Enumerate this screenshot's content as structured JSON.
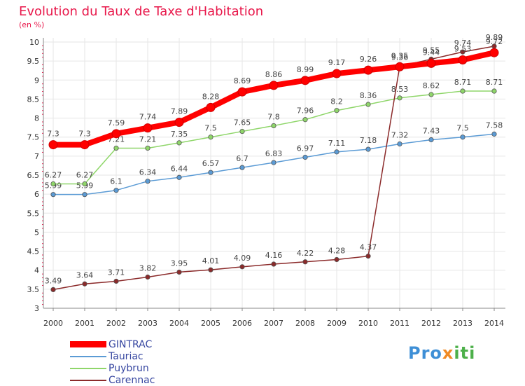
{
  "page": {
    "title": "Evolution du Taux de Taxe d'Habitation",
    "subtitle": "(en %)"
  },
  "logo": {
    "text_part1": "Pro",
    "text_part2": "x",
    "text_part3": "iti"
  },
  "colors": {
    "background": "#ffffff",
    "title": "#e8174a",
    "axis": "#888888",
    "grid": "#e6e6e6",
    "legend_text": "#3646a0"
  },
  "chart_data": {
    "type": "line",
    "title": "Evolution du Taux de Taxe d'Habitation",
    "subtitle": "(en %)",
    "x": [
      "2000",
      "2001",
      "2002",
      "2003",
      "2004",
      "2005",
      "2006",
      "2007",
      "2008",
      "2009",
      "2010",
      "2011",
      "2012",
      "2013",
      "2014"
    ],
    "ylim": [
      3,
      10
    ],
    "yticks": [
      "3",
      "3.5",
      "4",
      "4.5",
      "5",
      "5.5",
      "6",
      "6.5",
      "7",
      "7.5",
      "8",
      "8.5",
      "9",
      "9.5",
      "10"
    ],
    "grid": true,
    "legend_position": "bottom-left",
    "series": [
      {
        "name": "GINTRAC",
        "color": "#ff0000",
        "values": [
          7.3,
          7.3,
          7.59,
          7.74,
          7.89,
          8.28,
          8.69,
          8.86,
          8.99,
          9.17,
          9.26,
          9.35,
          9.44,
          9.53,
          9.72
        ],
        "labels": [
          "7.3",
          "7.3",
          "7.59",
          "7.74",
          "7.89",
          "8.28",
          "8.69",
          "8.86",
          "8.99",
          "9.17",
          "9.26",
          "9.35",
          "9.44",
          "9.53",
          "9.72"
        ]
      },
      {
        "name": "Tauriac",
        "color": "#5b9bd5",
        "values": [
          5.99,
          5.99,
          6.1,
          6.34,
          6.44,
          6.57,
          6.7,
          6.83,
          6.97,
          7.11,
          7.18,
          7.32,
          7.43,
          7.5,
          7.58
        ],
        "labels": [
          "5.99",
          "5.99",
          "6.1",
          "6.34",
          "6.44",
          "6.57",
          "6.7",
          "6.83",
          "6.97",
          "7.11",
          "7.18",
          "7.32",
          "7.43",
          "7.5",
          "7.58"
        ]
      },
      {
        "name": "Puybrun",
        "color": "#8fd66a",
        "values": [
          6.27,
          6.27,
          7.21,
          7.21,
          7.35,
          7.5,
          7.65,
          7.8,
          7.96,
          8.2,
          8.36,
          8.53,
          8.62,
          8.71,
          8.71
        ],
        "labels": [
          "6.27",
          "6.27",
          "7.21",
          "7.21",
          "7.35",
          "7.5",
          "7.65",
          "7.8",
          "7.96",
          "8.2",
          "8.36",
          "8.53",
          "8.62",
          "8.71",
          "8.71"
        ]
      },
      {
        "name": "Carennac",
        "color": "#8b2a2a",
        "values": [
          3.49,
          3.64,
          3.71,
          3.82,
          3.95,
          4.01,
          4.09,
          4.16,
          4.22,
          4.28,
          4.37,
          9.36,
          9.55,
          9.74,
          9.89
        ],
        "labels": [
          "3.49",
          "3.64",
          "3.71",
          "3.82",
          "3.95",
          "4.01",
          "4.09",
          "4.16",
          "4.22",
          "4.28",
          "4.37",
          "9.36",
          "9.55",
          "9.74",
          "9.89"
        ]
      }
    ]
  }
}
